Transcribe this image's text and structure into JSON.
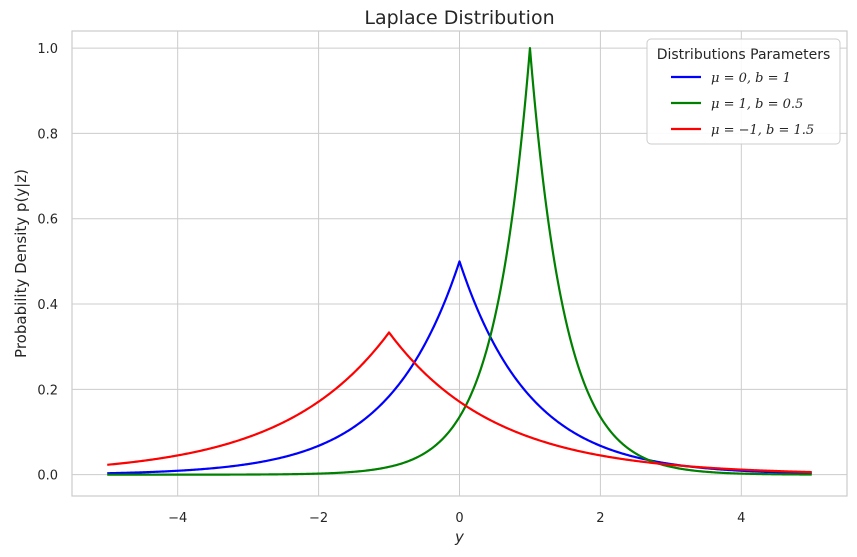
{
  "chart_data": {
    "type": "line",
    "title": "Laplace Distribution",
    "xlabel": "y",
    "ylabel": "Probability Density p(y|z)",
    "xlim": [
      -5.5,
      5.5
    ],
    "ylim": [
      -0.05,
      1.04
    ],
    "x_range": [
      -5,
      5
    ],
    "grid": true,
    "xticks": [
      -4,
      -2,
      0,
      2,
      4
    ],
    "xtick_labels": [
      "−4",
      "−2",
      "0",
      "2",
      "4"
    ],
    "yticks": [
      0.0,
      0.2,
      0.4,
      0.6,
      0.8,
      1.0
    ],
    "ytick_labels": [
      "0.0",
      "0.2",
      "0.4",
      "0.6",
      "0.8",
      "1.0"
    ],
    "legend": {
      "title": "Distributions Parameters",
      "location": "top-right"
    },
    "series": [
      {
        "name": "μ = 0, b = 1",
        "mu": 0,
        "b": 1,
        "color": "#0000ff",
        "peak": 0.5
      },
      {
        "name": "μ = 1, b = 0.5",
        "mu": 1,
        "b": 0.5,
        "color": "#008000",
        "peak": 1.0
      },
      {
        "name": "μ = −1, b = 1.5",
        "mu": -1,
        "b": 1.5,
        "color": "#ff0000",
        "peak": 0.333
      }
    ]
  }
}
